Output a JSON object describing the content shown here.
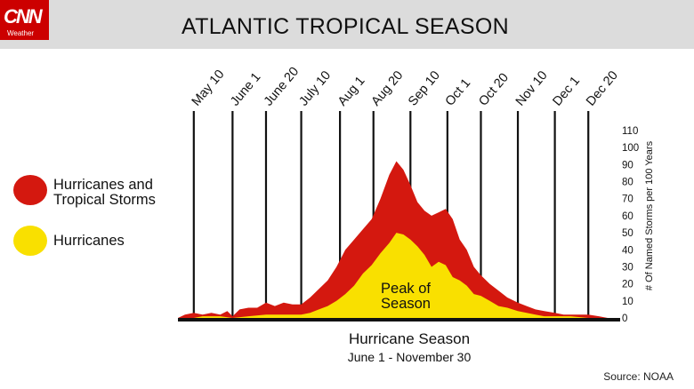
{
  "brand": {
    "logo": "CNN",
    "logo_sub": "Weather"
  },
  "header": {
    "title": "ATLANTIC TROPICAL SEASON"
  },
  "legend": [
    {
      "label": "Hurricanes and Tropical Storms",
      "color": "#d4180f"
    },
    {
      "label": "Hurricanes",
      "color": "#f9e000"
    }
  ],
  "source": "Source: NOAA",
  "chart_data": {
    "type": "area",
    "title": "ATLANTIC TROPICAL SEASON",
    "xlabel": "Hurricane Season",
    "xsublabel": "June 1 - November 30",
    "ylabel": "# Of Named Storms per 100 Years",
    "ylim": [
      0,
      110
    ],
    "yticks": [
      0,
      10,
      20,
      30,
      40,
      50,
      60,
      70,
      80,
      90,
      100,
      110
    ],
    "date_markers": [
      "May 10",
      "June 1",
      "June 20",
      "July 10",
      "Aug 1",
      "Aug 20",
      "Sep 10",
      "Oct 1",
      "Oct 20",
      "Nov 10",
      "Dec 1",
      "Dec 20"
    ],
    "annotation": "Peak of Season",
    "series": [
      {
        "name": "Hurricanes and Tropical Storms",
        "color": "#d4180f",
        "points": [
          [
            "May 1",
            0
          ],
          [
            "May 5",
            2
          ],
          [
            "May 10",
            3
          ],
          [
            "May 15",
            2
          ],
          [
            "May 20",
            3
          ],
          [
            "May 25",
            2
          ],
          [
            "May 29",
            4
          ],
          [
            "June 1",
            1
          ],
          [
            "June 5",
            5
          ],
          [
            "June 10",
            6
          ],
          [
            "June 15",
            6
          ],
          [
            "June 20",
            9
          ],
          [
            "June 25",
            7
          ],
          [
            "June 30",
            9
          ],
          [
            "July 5",
            8
          ],
          [
            "July 10",
            8
          ],
          [
            "July 15",
            12
          ],
          [
            "July 20",
            17
          ],
          [
            "July 25",
            22
          ],
          [
            "July 30",
            30
          ],
          [
            "Aug 4",
            40
          ],
          [
            "Aug 9",
            46
          ],
          [
            "Aug 14",
            52
          ],
          [
            "Aug 19",
            58
          ],
          [
            "Aug 24",
            70
          ],
          [
            "Aug 29",
            84
          ],
          [
            "Sep 2",
            92
          ],
          [
            "Sep 6",
            87
          ],
          [
            "Sep 10",
            78
          ],
          [
            "Sep 14",
            68
          ],
          [
            "Sep 18",
            63
          ],
          [
            "Sep 22",
            60
          ],
          [
            "Sep 26",
            62
          ],
          [
            "Sep 30",
            64
          ],
          [
            "Oct 4",
            58
          ],
          [
            "Oct 8",
            46
          ],
          [
            "Oct 12",
            40
          ],
          [
            "Oct 16",
            30
          ],
          [
            "Oct 20",
            25
          ],
          [
            "Oct 25",
            20
          ],
          [
            "Oct 30",
            16
          ],
          [
            "Nov 4",
            12
          ],
          [
            "Nov 10",
            9
          ],
          [
            "Nov 15",
            7
          ],
          [
            "Nov 20",
            5
          ],
          [
            "Nov 25",
            4
          ],
          [
            "Dec 1",
            3
          ],
          [
            "Dec 6",
            2
          ],
          [
            "Dec 11",
            2
          ],
          [
            "Dec 16",
            2
          ],
          [
            "Dec 20",
            2
          ],
          [
            "Dec 26",
            1
          ],
          [
            "Dec 31",
            0
          ]
        ]
      },
      {
        "name": "Hurricanes",
        "color": "#f9e000",
        "points": [
          [
            "May 1",
            0
          ],
          [
            "May 10",
            0
          ],
          [
            "May 15",
            1
          ],
          [
            "May 25",
            1
          ],
          [
            "June 1",
            0
          ],
          [
            "June 10",
            1
          ],
          [
            "June 20",
            2
          ],
          [
            "June 30",
            2
          ],
          [
            "July 10",
            2
          ],
          [
            "July 15",
            3
          ],
          [
            "July 20",
            5
          ],
          [
            "July 25",
            7
          ],
          [
            "July 30",
            10
          ],
          [
            "Aug 4",
            14
          ],
          [
            "Aug 9",
            19
          ],
          [
            "Aug 14",
            26
          ],
          [
            "Aug 19",
            31
          ],
          [
            "Aug 24",
            38
          ],
          [
            "Aug 29",
            44
          ],
          [
            "Sep 2",
            50
          ],
          [
            "Sep 6",
            49
          ],
          [
            "Sep 10",
            46
          ],
          [
            "Sep 14",
            42
          ],
          [
            "Sep 18",
            37
          ],
          [
            "Sep 22",
            30
          ],
          [
            "Sep 26",
            33
          ],
          [
            "Sep 30",
            31
          ],
          [
            "Oct 4",
            24
          ],
          [
            "Oct 8",
            22
          ],
          [
            "Oct 12",
            19
          ],
          [
            "Oct 16",
            14
          ],
          [
            "Oct 20",
            13
          ],
          [
            "Oct 25",
            10
          ],
          [
            "Oct 30",
            7
          ],
          [
            "Nov 4",
            6
          ],
          [
            "Nov 10",
            4
          ],
          [
            "Nov 15",
            3
          ],
          [
            "Nov 20",
            2
          ],
          [
            "Nov 25",
            1
          ],
          [
            "Dec 1",
            1
          ],
          [
            "Dec 10",
            1
          ],
          [
            "Dec 20",
            0
          ],
          [
            "Dec 31",
            0
          ]
        ]
      }
    ]
  }
}
